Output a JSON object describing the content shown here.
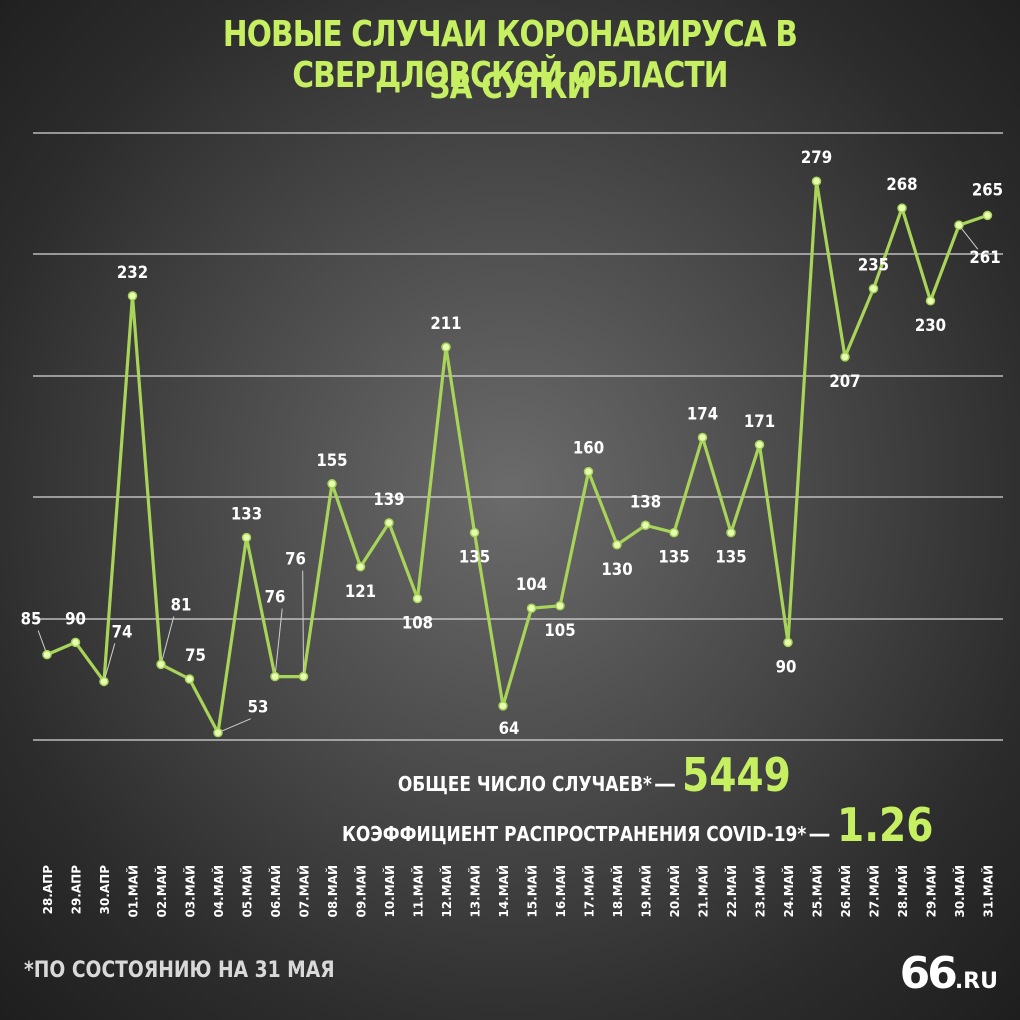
{
  "title_line1": "НОВЫЕ СЛУЧАИ КОРОНАВИРУСА В СВЕРДЛОВСКОЙ ОБЛАСТИ",
  "title_line2": "ЗА СУТКИ",
  "total": {
    "label": "ОБЩЕЕ ЧИСЛО СЛУЧАЕВ*",
    "dash": "—",
    "value": "5449"
  },
  "rt": {
    "label": "КОЭФФИЦИЕНТ РАСПРОСТРАНЕНИЯ COVID-19*",
    "dash": "—",
    "value": "1.26"
  },
  "footnote": "*ПО СОСТОЯНИЮ НА 31 МАЯ",
  "logo": {
    "number": "66",
    "domain": ".RU"
  },
  "colors": {
    "accent": "#c6f062",
    "line": "#a9d45a",
    "text": "#ffffff",
    "grid": "#d8d8d8"
  },
  "chart_data": {
    "type": "line",
    "title": "НОВЫЕ СЛУЧАИ КОРОНАВИРУСА В СВЕРДЛОВСКОЙ ОБЛАСТИ ЗА СУТКИ",
    "categories": [
      "28.АПР",
      "29.АПР",
      "30.АПР",
      "01.МАЙ",
      "02.МАЙ",
      "03.МАЙ",
      "04.МАЙ",
      "05.МАЙ",
      "06.МАЙ",
      "07.МАЙ",
      "08.МАЙ",
      "09.МАЙ",
      "10.МАЙ",
      "11.МАЙ",
      "12.МАЙ",
      "13.МАЙ",
      "14.МАЙ",
      "15.МАЙ",
      "16.МАЙ",
      "17.МАЙ",
      "18.МАЙ",
      "19.МАЙ",
      "20.МАЙ",
      "21.МАЙ",
      "22.МАЙ",
      "23.МАЙ",
      "24.МАЙ",
      "25.МАЙ",
      "26.МАЙ",
      "27.МАЙ",
      "28.МАЙ",
      "29.МАЙ",
      "30.МАЙ",
      "31.МАЙ"
    ],
    "values": [
      85,
      90,
      74,
      232,
      81,
      75,
      53,
      133,
      76,
      76,
      155,
      121,
      139,
      108,
      211,
      135,
      64,
      104,
      105,
      160,
      130,
      138,
      135,
      174,
      135,
      171,
      90,
      279,
      207,
      235,
      268,
      230,
      261,
      265
    ],
    "ylim": [
      50,
      300
    ],
    "grid": true,
    "ylabel": "",
    "xlabel": ""
  }
}
